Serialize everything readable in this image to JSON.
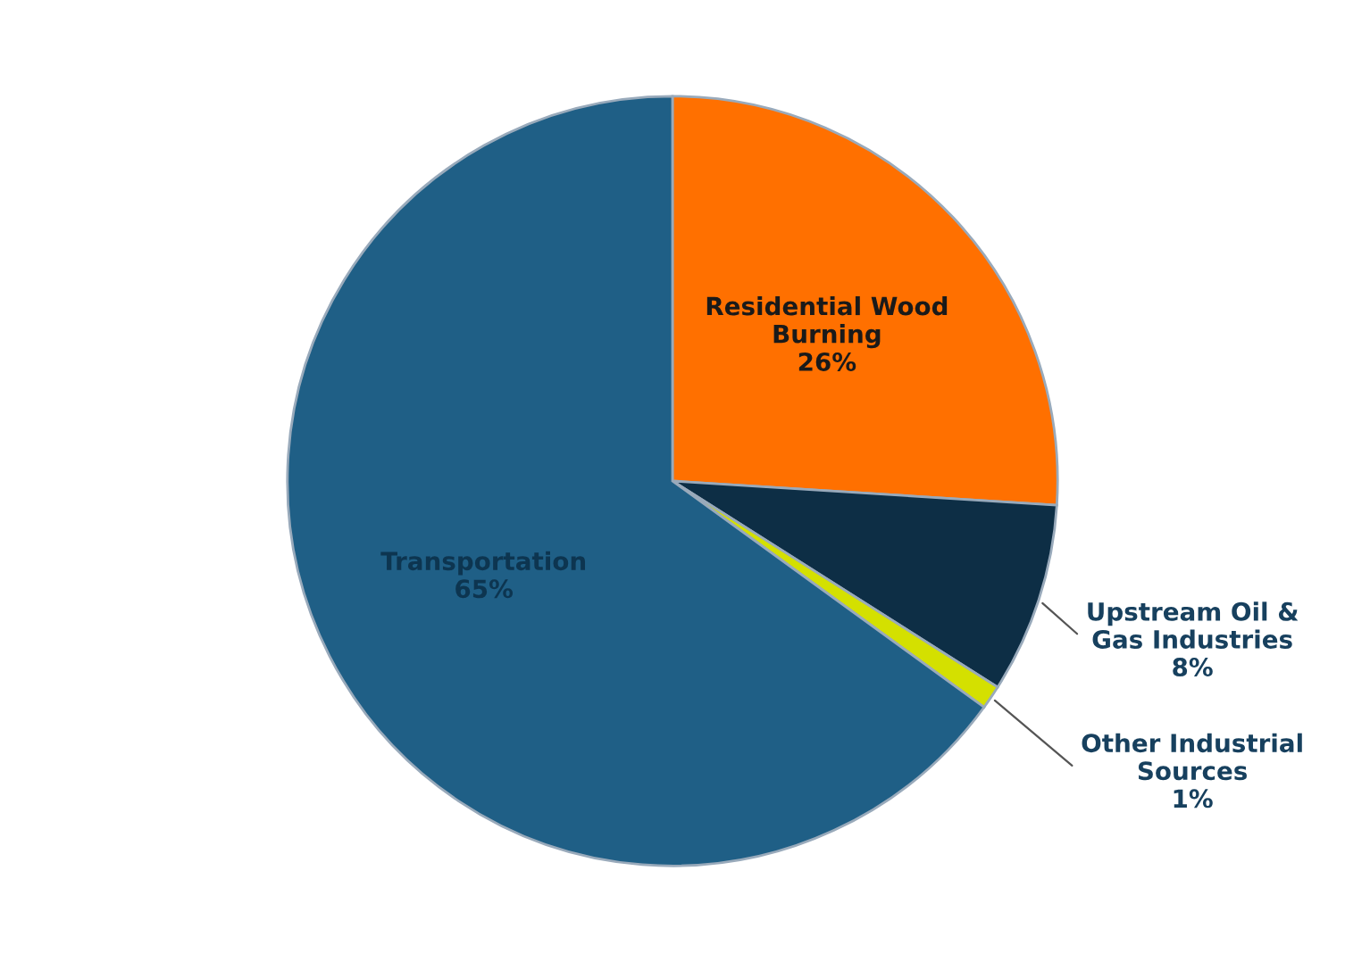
{
  "chart_data": {
    "type": "pie",
    "categories": [
      "Residential Wood Burning",
      "Upstream Oil & Gas Industries",
      "Other Industrial Sources",
      "Transportation"
    ],
    "values": [
      26,
      8,
      1,
      65
    ],
    "colors": [
      "#ff7000",
      "#0d2e45",
      "#d4e000",
      "#1f5f86"
    ],
    "value_labels": [
      "26%",
      "8%",
      "1%",
      "65%"
    ]
  }
}
